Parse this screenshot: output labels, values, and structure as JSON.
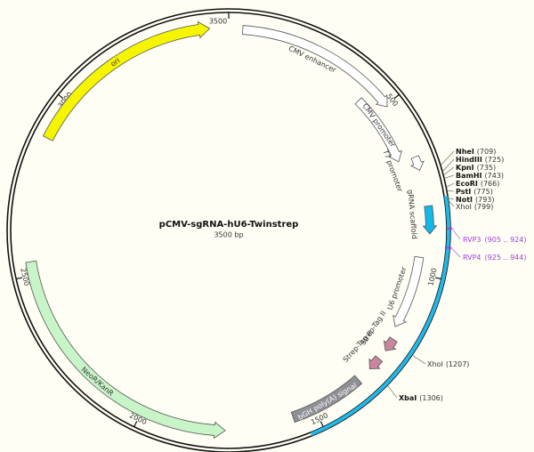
{
  "title": "pCMV-sgRNA-hU6-Twinstrep",
  "size": "3500 bp",
  "ticks": [
    3500,
    500,
    1000,
    1500,
    2000,
    2500,
    3000
  ],
  "features": [
    {
      "label": "ori"
    },
    {
      "label": "CMV enhancer"
    },
    {
      "label": "CMV promoter"
    },
    {
      "label": "T7 promoter"
    },
    {
      "label": "gRNA scaffold"
    },
    {
      "label": "U6 promoter"
    },
    {
      "label": "Strep-Tag II"
    },
    {
      "label": "Strep-Tag II"
    },
    {
      "label": "bGH poly(A) signal"
    },
    {
      "label": "NeoR/KanR"
    }
  ],
  "sites": [
    {
      "name": "NheI",
      "position": "(709)"
    },
    {
      "name": "HindIII",
      "position": "(725)"
    },
    {
      "name": "KpnI",
      "position": "(735)"
    },
    {
      "name": "BamHI",
      "position": "(743)"
    },
    {
      "name": "EcoRI",
      "position": "(766)"
    },
    {
      "name": "PstI",
      "position": "(775)"
    },
    {
      "name": "NotI",
      "position": "(793)"
    },
    {
      "name": "XhoI",
      "position": "(799)"
    },
    {
      "name": "XhoI",
      "position": "(1207)"
    },
    {
      "name": "XbaI",
      "position": "(1306)"
    }
  ],
  "primers": [
    {
      "name": "RVP3",
      "range": "(905 .. 924)"
    },
    {
      "name": "RVP4",
      "range": "(925 .. 944)"
    }
  ]
}
